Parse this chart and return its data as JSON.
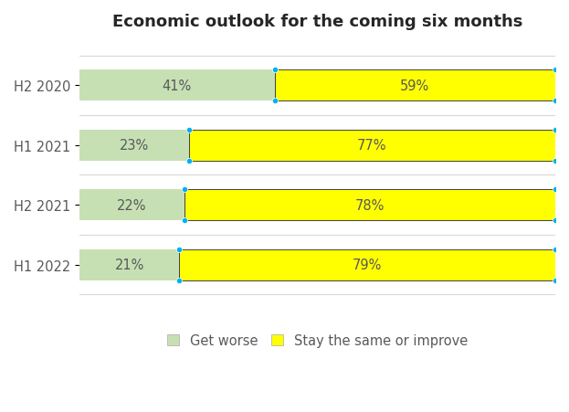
{
  "title": "Economic outlook for the coming six months",
  "categories": [
    "H2 2020",
    "H1 2021",
    "H2 2021",
    "H1 2022"
  ],
  "get_worse": [
    41,
    23,
    22,
    21
  ],
  "stay_same_or_improve": [
    59,
    77,
    78,
    79
  ],
  "color_get_worse": "#c6e0b4",
  "color_improve": "#ffff00",
  "color_border_improve": "#404040",
  "color_dot": "#00b0f0",
  "legend_labels": [
    "Get worse",
    "Stay the same or improve"
  ],
  "bar_height": 0.52,
  "title_fontsize": 13,
  "label_fontsize": 10.5,
  "tick_fontsize": 10.5,
  "legend_fontsize": 10.5,
  "background_color": "#ffffff",
  "text_color": "#595959",
  "gridline_color": "#d9d9d9",
  "xlim_max": 105
}
